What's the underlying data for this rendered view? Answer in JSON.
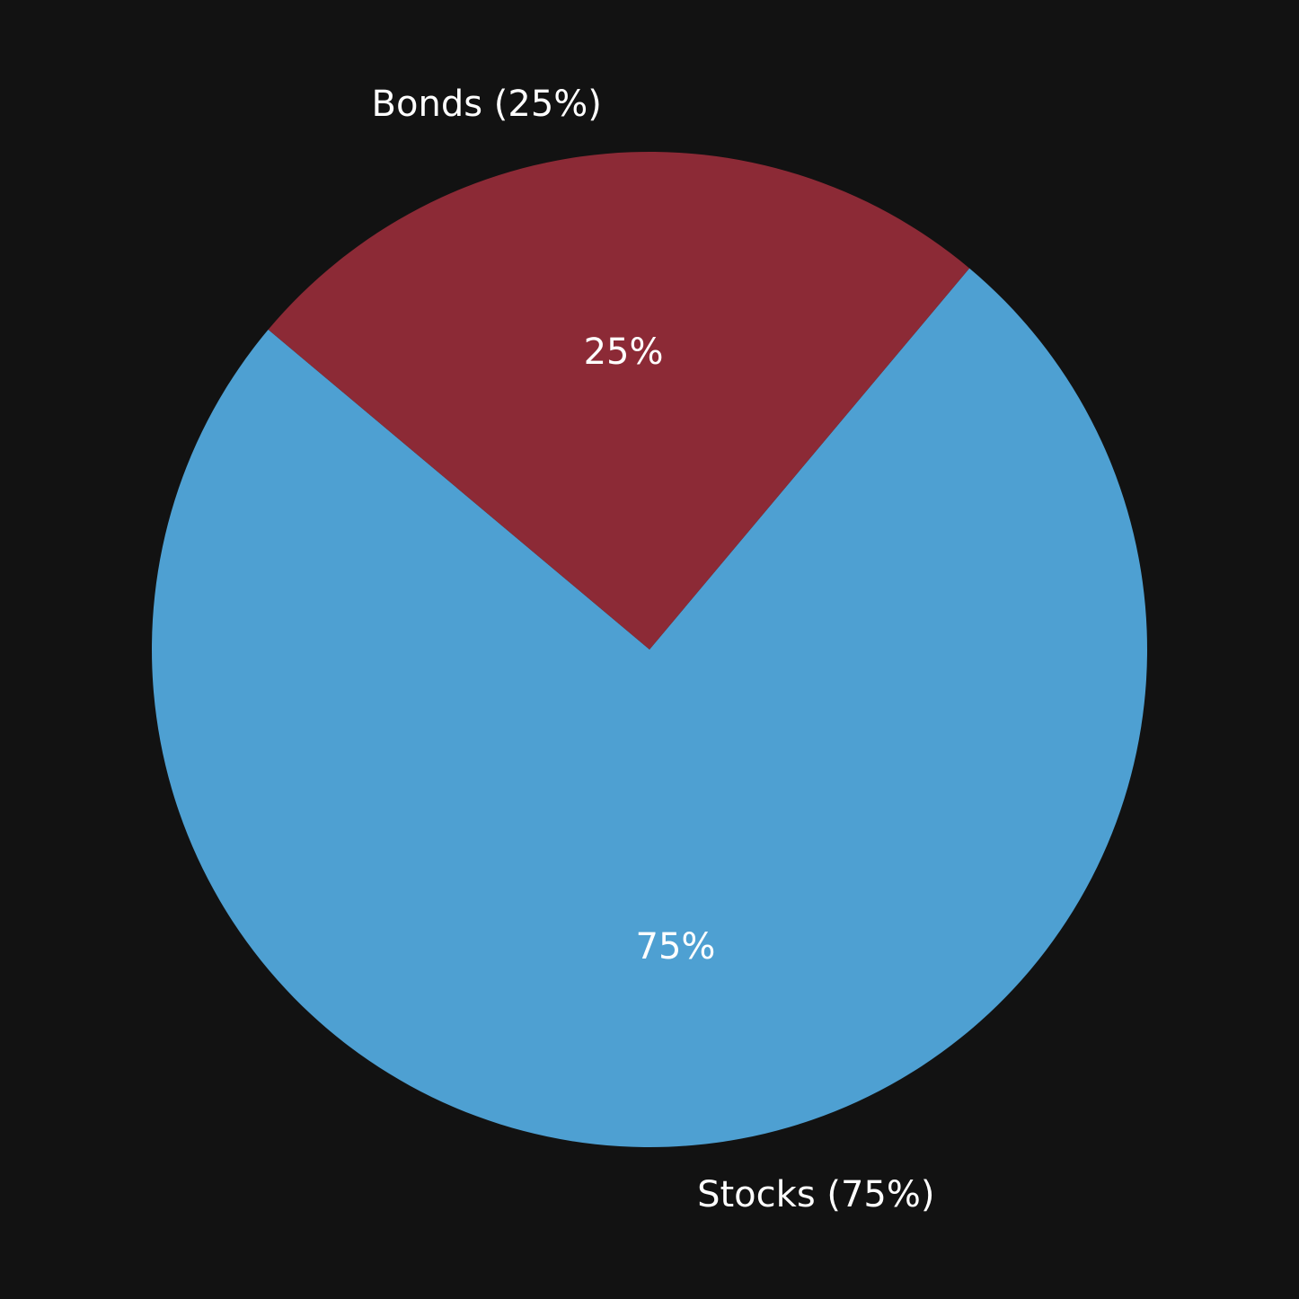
{
  "chart_data": {
    "type": "pie",
    "categories": [
      "Stocks",
      "Bonds"
    ],
    "values": [
      75,
      25
    ],
    "category_labels": [
      "Stocks (75%)",
      "Bonds (25%)"
    ],
    "percent_labels": [
      "75%",
      "25%"
    ],
    "colors": [
      "#4ea0d2",
      "#8c2a36"
    ],
    "background": "#121212",
    "text_color": "#ffffff",
    "legend": "none"
  }
}
